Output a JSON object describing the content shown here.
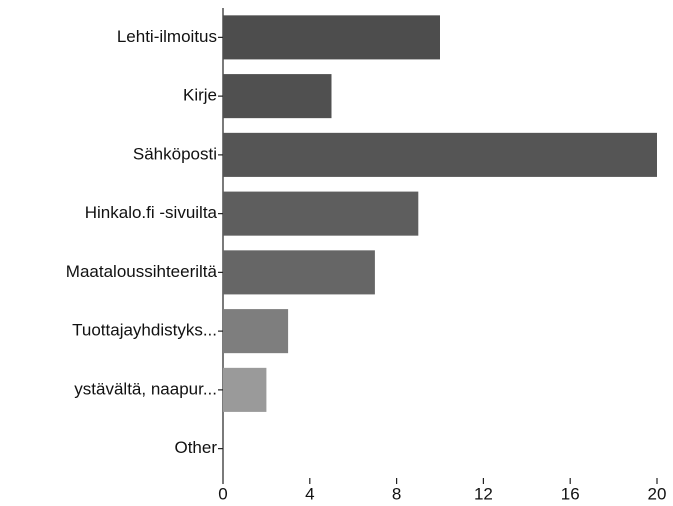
{
  "chart_data": {
    "type": "bar",
    "orientation": "horizontal",
    "categories": [
      "Lehti-ilmoitus",
      "Kirje",
      "Sähköposti",
      "Hinkalo.fi -sivuilta",
      "Maataloussihteeriltä",
      "Tuottajayhdistyks...",
      "ystävältä, naapur...",
      "Other"
    ],
    "values": [
      10,
      5,
      20,
      9,
      7,
      3,
      2,
      0
    ],
    "colors": [
      "#4d4d4d",
      "#505050",
      "#555555",
      "#5e5e5e",
      "#666666",
      "#7e7e7e",
      "#9a9a9a",
      "#aaaaaa"
    ],
    "xlim": [
      0,
      20
    ],
    "xticks": [
      0,
      4,
      8,
      12,
      16,
      20
    ],
    "grid": false
  }
}
